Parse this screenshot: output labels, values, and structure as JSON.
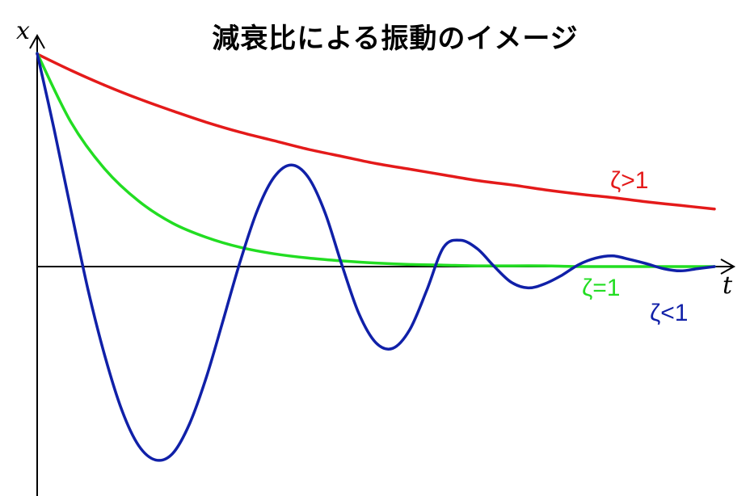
{
  "chart_data": {
    "type": "line",
    "title": "減衰比による振動のイメージ",
    "xlabel": "t",
    "ylabel": "x",
    "xlim": [
      0,
      10
    ],
    "ylim": [
      -3,
      3
    ],
    "grid": false,
    "legend": "none",
    "series": [
      {
        "name": "ζ>1",
        "color": "#e41a1a",
        "x": [
          0.0,
          0.5,
          1.0,
          1.5,
          2.0,
          2.5,
          3.0,
          3.5,
          4.0,
          4.5,
          5.0,
          5.5,
          6.0,
          6.5,
          7.0,
          7.5,
          8.0,
          8.5,
          9.0,
          9.5,
          10.0
        ],
        "y": [
          2.99,
          2.76,
          2.55,
          2.36,
          2.19,
          2.03,
          1.89,
          1.77,
          1.65,
          1.55,
          1.45,
          1.37,
          1.29,
          1.21,
          1.15,
          1.08,
          1.02,
          0.97,
          0.91,
          0.86,
          0.81
        ]
      },
      {
        "name": "ζ=1",
        "color": "#22dd22",
        "x": [
          0.0,
          0.5,
          1.0,
          1.5,
          2.0,
          2.5,
          3.0,
          3.5,
          4.0,
          4.5,
          5.0,
          5.5,
          6.0,
          6.5,
          7.0,
          7.5,
          8.0,
          8.5,
          9.0,
          9.5,
          10.0
        ],
        "y": [
          3.0,
          2.03,
          1.37,
          0.92,
          0.61,
          0.41,
          0.27,
          0.18,
          0.12,
          0.08,
          0.05,
          0.03,
          0.02,
          0.01,
          0.01,
          0.01,
          0.0,
          0.0,
          0.0,
          0.0,
          0.0
        ]
      },
      {
        "name": "ζ<1",
        "color": "#1020a8",
        "x": [
          0.0,
          0.25,
          0.5,
          0.75,
          1.0,
          1.25,
          1.5,
          1.75,
          2.0,
          2.25,
          2.5,
          2.75,
          3.0,
          3.25,
          3.5,
          3.75,
          4.0,
          4.25,
          4.5,
          4.75,
          5.0,
          5.25,
          5.5,
          5.75,
          6.0,
          6.25,
          6.5,
          6.75,
          7.0,
          7.25,
          7.5,
          7.75,
          8.0,
          8.25,
          8.5,
          8.75,
          9.0,
          9.25,
          9.5,
          9.75,
          10.0
        ],
        "y": [
          3.0,
          1.93,
          0.79,
          -0.32,
          -1.26,
          -2.02,
          -2.52,
          -2.72,
          -2.63,
          -2.21,
          -1.55,
          -0.74,
          0.08,
          0.79,
          1.26,
          1.43,
          1.26,
          0.76,
          0.02,
          -0.66,
          -1.07,
          -1.15,
          -0.89,
          -0.34,
          0.27,
          0.37,
          0.25,
          0.0,
          -0.22,
          -0.3,
          -0.24,
          -0.12,
          0.03,
          0.12,
          0.15,
          0.1,
          0.04,
          -0.03,
          -0.06,
          -0.03,
          0.0
        ]
      }
    ],
    "annotations": [
      {
        "text": "ζ>1",
        "series": "ζ>1"
      },
      {
        "text": "ζ=1",
        "series": "ζ=1"
      },
      {
        "text": "ζ<1",
        "series": "ζ<1"
      }
    ]
  }
}
